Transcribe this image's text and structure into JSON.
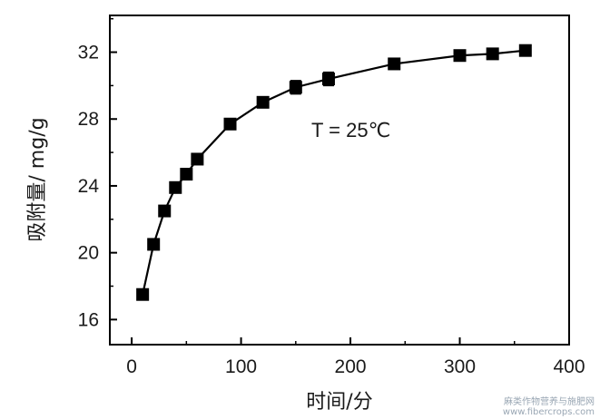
{
  "chart_data": {
    "type": "line",
    "title": "",
    "xlabel": "时间/分",
    "ylabel": "吸附量/ mg/g",
    "xlim": [
      -20,
      400
    ],
    "ylim": [
      14.5,
      34.2
    ],
    "xticks": [
      0,
      100,
      200,
      300,
      400
    ],
    "yticks": [
      16,
      20,
      24,
      28,
      32
    ],
    "grid": false,
    "annotation": "T = 25℃",
    "series": [
      {
        "x": [
          10,
          20,
          30,
          40,
          50,
          60,
          90,
          120,
          150,
          180,
          240,
          300,
          330,
          360
        ],
        "y": [
          17.5,
          20.5,
          22.5,
          23.9,
          24.7,
          25.6,
          27.7,
          29.0,
          29.9,
          30.4,
          31.3,
          31.8,
          31.9,
          32.1
        ],
        "yerr": [
          0,
          0,
          0,
          0,
          0,
          0,
          0,
          0,
          0.4,
          0.4,
          0,
          0,
          0,
          0
        ],
        "marker": "square",
        "color": "#000000"
      }
    ]
  },
  "watermark": {
    "line1": "麻类作物营养与施肥网",
    "line2": "www.fibercrops.com"
  }
}
